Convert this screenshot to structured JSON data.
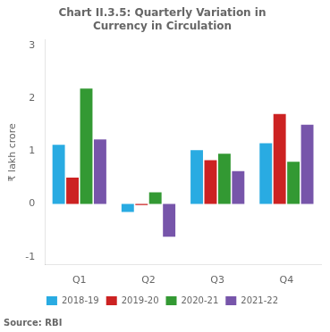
{
  "chart_data": {
    "type": "bar",
    "title": "Chart II.3.5: Quarterly Variation in\nCurrency in Circulation",
    "ylabel": "₹ lakh crore",
    "annotations": [
      "Source: RBI"
    ],
    "categories": [
      "Q1",
      "Q2",
      "Q3",
      "Q4"
    ],
    "series": [
      {
        "name": "2018-19",
        "color": "#29ABE2",
        "values": [
          1.12,
          -0.15,
          1.02,
          1.15
        ]
      },
      {
        "name": "2019-20",
        "color": "#CC2222",
        "values": [
          0.5,
          -0.02,
          0.83,
          1.7
        ]
      },
      {
        "name": "2020-21",
        "color": "#339933",
        "values": [
          2.18,
          0.22,
          0.95,
          0.8
        ]
      },
      {
        "name": "2021-22",
        "color": "#7755AA",
        "values": [
          1.22,
          -0.62,
          0.62,
          1.5
        ]
      }
    ],
    "ylim": [
      -1.15,
      3.1
    ],
    "yticks": [
      -1,
      0,
      1,
      2,
      3
    ],
    "grid": false,
    "legend": "bottom"
  }
}
